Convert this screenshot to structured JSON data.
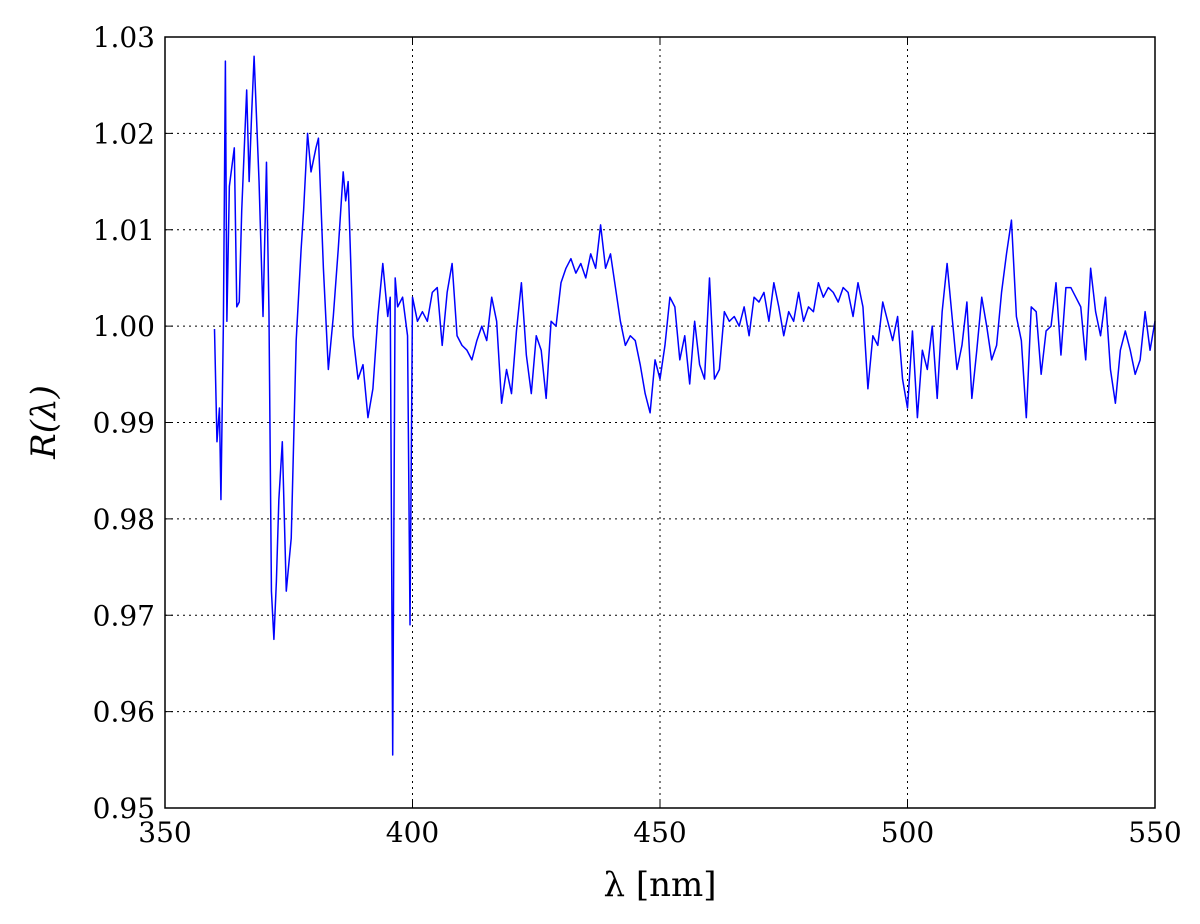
{
  "chart_data": {
    "type": "line",
    "x_label": "λ  [nm]",
    "y_label": "R(λ)",
    "xlim": [
      350,
      550
    ],
    "ylim": [
      0.95,
      1.03
    ],
    "xticks": [
      350,
      400,
      450,
      500,
      550
    ],
    "yticks": [
      0.95,
      0.96,
      0.97,
      0.98,
      0.99,
      {
        "value": 1,
        "label": "1.00"
      },
      1.01,
      1.02,
      1.03
    ],
    "grid": true,
    "x": [
      360,
      360.5,
      361,
      361.3,
      361.8,
      362.2,
      362.5,
      363,
      363.5,
      364,
      364.5,
      365,
      365.5,
      366.5,
      367,
      367.5,
      368,
      369,
      369.8,
      370.5,
      371,
      371.5,
      372,
      372.5,
      373,
      373.7,
      374.5,
      375.5,
      376.5,
      377.5,
      378,
      378.8,
      379.5,
      380.5,
      381,
      382,
      383,
      384,
      385,
      386,
      386.5,
      387,
      388,
      389,
      390,
      391,
      392,
      393,
      394,
      395,
      395.5,
      396,
      396.5,
      397,
      398,
      399,
      399.5,
      400,
      401,
      402,
      403,
      404,
      405,
      406,
      407,
      408,
      409,
      410,
      411,
      412,
      413,
      414,
      415,
      416,
      417,
      418,
      419,
      420,
      421,
      422,
      423,
      424,
      425,
      426,
      427,
      428,
      429,
      430,
      431,
      432,
      433,
      434,
      435,
      436,
      437,
      438,
      439,
      440,
      441,
      442,
      443,
      444,
      445,
      446,
      447,
      448,
      449,
      450,
      451,
      452,
      453,
      454,
      455,
      456,
      457,
      458,
      459,
      460,
      461,
      462,
      463,
      464,
      465,
      466,
      467,
      468,
      469,
      470,
      471,
      472,
      473,
      474,
      475,
      476,
      477,
      478,
      479,
      480,
      481,
      482,
      483,
      484,
      485,
      486,
      487,
      488,
      489,
      490,
      491,
      492,
      493,
      494,
      495,
      496,
      497,
      498,
      499,
      500,
      501,
      502,
      503,
      504,
      505,
      506,
      507,
      508,
      509,
      510,
      511,
      512,
      513,
      514,
      515,
      516,
      517,
      518,
      519,
      520,
      521,
      522,
      523,
      524,
      525,
      526,
      527,
      528,
      529,
      530,
      531,
      532,
      533,
      534,
      535,
      536,
      537,
      538,
      539,
      540,
      541,
      542,
      543,
      544,
      545,
      546,
      547,
      548,
      549,
      550
    ],
    "series": [
      {
        "color": "#0000ff",
        "values": [
          0.9997,
          0.988,
          0.9915,
          0.982,
          1.0005,
          1.0275,
          1.0005,
          1.0145,
          1.0165,
          1.0185,
          1.002,
          1.0025,
          1.012,
          1.0245,
          1.015,
          1.022,
          1.028,
          1.015,
          1.001,
          1.017,
          1.0015,
          0.9725,
          0.9675,
          0.9735,
          0.982,
          0.988,
          0.9725,
          0.978,
          0.9985,
          1.008,
          1.012,
          1.02,
          1.016,
          1.0185,
          1.0195,
          1.006,
          0.9955,
          1.001,
          1.008,
          1.016,
          1.013,
          1.015,
          0.999,
          0.9945,
          0.996,
          0.9905,
          0.9935,
          1.001,
          1.0065,
          1.001,
          1.003,
          0.9555,
          1.005,
          1.002,
          1.003,
          0.999,
          0.969,
          1.003,
          1.0005,
          1.0015,
          1.0005,
          1.0035,
          1.004,
          0.998,
          1.0035,
          1.0065,
          0.999,
          0.998,
          0.9975,
          0.9965,
          0.9985,
          1,
          0.9985,
          1.003,
          1.0005,
          0.992,
          0.9955,
          0.993,
          0.9995,
          1.0045,
          0.997,
          0.993,
          0.999,
          0.9975,
          0.9925,
          1.0005,
          1,
          1.0045,
          1.006,
          1.007,
          1.0055,
          1.0065,
          1.005,
          1.0075,
          1.006,
          1.0105,
          1.006,
          1.0075,
          1.004,
          1.0005,
          0.998,
          0.999,
          0.9985,
          0.996,
          0.993,
          0.991,
          0.9965,
          0.9945,
          0.998,
          1.003,
          1.002,
          0.9965,
          0.999,
          0.994,
          1.0005,
          0.996,
          0.9945,
          1.005,
          0.9945,
          0.9955,
          1.0015,
          1.0005,
          1.001,
          1,
          1.002,
          0.999,
          1.003,
          1.0025,
          1.0035,
          1.0005,
          1.0045,
          1.002,
          0.999,
          1.0015,
          1.0005,
          1.0035,
          1.0005,
          1.002,
          1.0015,
          1.0045,
          1.003,
          1.004,
          1.0035,
          1.0025,
          1.004,
          1.0035,
          1.001,
          1.0045,
          1.002,
          0.9935,
          0.999,
          0.998,
          1.0025,
          1.0005,
          0.9985,
          1.001,
          0.9945,
          0.9915,
          0.9995,
          0.9905,
          0.9975,
          0.9955,
          1,
          0.9925,
          1.0015,
          1.0065,
          1.001,
          0.9955,
          0.998,
          1.0025,
          0.9925,
          0.9975,
          1.003,
          1,
          0.9965,
          0.998,
          1.0035,
          1.0075,
          1.011,
          1.001,
          0.9985,
          0.9905,
          1.002,
          1.0015,
          0.995,
          0.9995,
          1,
          1.0045,
          0.997,
          1.004,
          1.004,
          1.003,
          1.002,
          0.9965,
          1.006,
          1.0015,
          0.999,
          1.003,
          0.9955,
          0.992,
          0.9975,
          0.9995,
          0.9975,
          0.995,
          0.9965,
          1.0015,
          0.9975,
          1.0005
        ]
      }
    ]
  }
}
